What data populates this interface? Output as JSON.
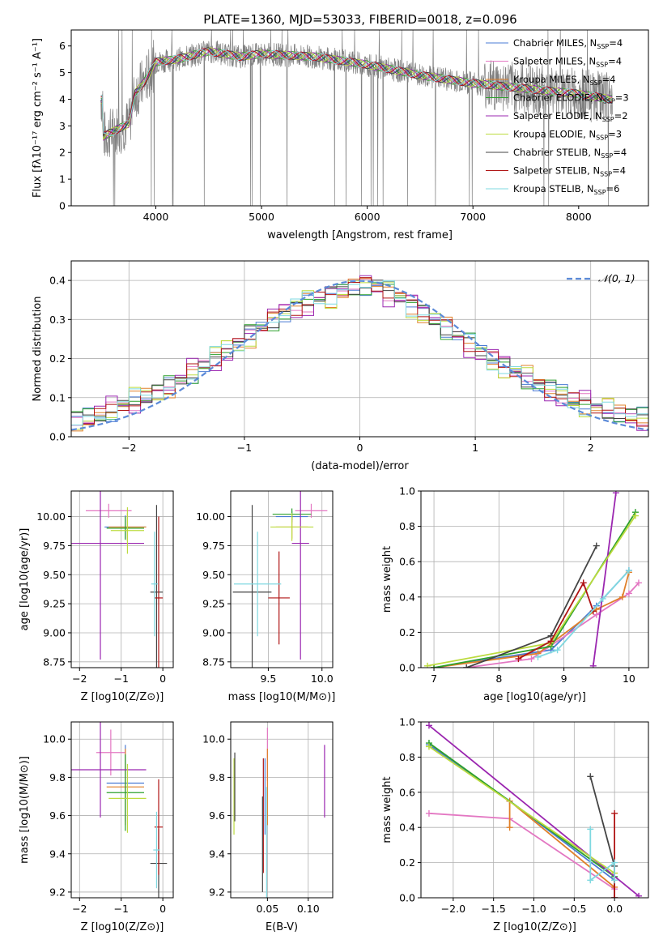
{
  "title": "PLATE=1360, MJD=53033, FIBERID=0018, z=0.096",
  "colors": {
    "chabrier_miles": "#4a7bd4",
    "salpeter_miles": "#e377c2",
    "kroupa_miles": "#e0802a",
    "chabrier_elodie": "#2ca02c",
    "salpeter_elodie": "#9b27b0",
    "kroupa_elodie": "#bcdb3e",
    "chabrier_stelib": "#444444",
    "salpeter_stelib": "#b01515",
    "kroupa_stelib": "#7fd8e0",
    "data": "#808080",
    "normal": "#5b8ad8"
  },
  "legend": [
    {
      "key": "chabrier_miles",
      "label": "Chabrier MILES, N",
      "sub": "SSP",
      "eq": "=4"
    },
    {
      "key": "salpeter_miles",
      "label": "Salpeter MILES, N",
      "sub": "SSP",
      "eq": "=4"
    },
    {
      "key": "kroupa_miles",
      "label": "Kroupa MILES, N",
      "sub": "SSP",
      "eq": "=4"
    },
    {
      "key": "chabrier_elodie",
      "label": "Chabrier ELODIE, N",
      "sub": "SSP",
      "eq": "=3"
    },
    {
      "key": "salpeter_elodie",
      "label": "Salpeter ELODIE, N",
      "sub": "SSP",
      "eq": "=2"
    },
    {
      "key": "kroupa_elodie",
      "label": "Kroupa ELODIE, N",
      "sub": "SSP",
      "eq": "=3"
    },
    {
      "key": "chabrier_stelib",
      "label": "Chabrier STELIB, N",
      "sub": "SSP",
      "eq": "=4"
    },
    {
      "key": "salpeter_stelib",
      "label": "Salpeter STELIB, N",
      "sub": "SSP",
      "eq": "=4"
    },
    {
      "key": "kroupa_stelib",
      "label": "Kroupa STELIB, N",
      "sub": "SSP",
      "eq": "=6"
    }
  ],
  "chart_data": [
    {
      "id": "spectrum",
      "type": "line",
      "xlabel": "wavelength [Angstrom, rest frame]",
      "ylabel": "Flux [fλ10⁻¹⁷ erg cm⁻² s⁻¹ A⁻¹]",
      "xlim": [
        3200,
        8660
      ],
      "ylim": [
        0,
        6.6
      ],
      "xticks": [
        4000,
        5000,
        6000,
        7000,
        8000
      ],
      "yticks": [
        0,
        1,
        2,
        3,
        4,
        5,
        6
      ],
      "continuum": [
        [
          3500,
          2.6
        ],
        [
          3700,
          3.0
        ],
        [
          3750,
          3.1
        ],
        [
          3800,
          4.2
        ],
        [
          3900,
          4.7
        ],
        [
          4000,
          5.4
        ],
        [
          4200,
          5.5
        ],
        [
          4500,
          5.8
        ],
        [
          4800,
          5.6
        ],
        [
          5000,
          5.7
        ],
        [
          5500,
          5.6
        ],
        [
          6000,
          5.3
        ],
        [
          6500,
          4.9
        ],
        [
          7000,
          4.6
        ],
        [
          7500,
          4.4
        ],
        [
          8000,
          4.2
        ],
        [
          8300,
          4.0
        ]
      ]
    },
    {
      "id": "residual_hist",
      "type": "step",
      "xlabel": "(data-model)/error",
      "ylabel": "Normed distribution",
      "xlim": [
        -2.5,
        2.5
      ],
      "ylim": [
        0,
        0.45
      ],
      "xticks": [
        -2,
        -1,
        0,
        1,
        2
      ],
      "yticks": [
        0.0,
        0.1,
        0.2,
        0.3,
        0.4
      ],
      "normal_label": "𝒩(0, 1)",
      "base_profile": [
        0.04,
        0.048,
        0.058,
        0.066,
        0.08,
        0.09,
        0.102,
        0.118,
        0.128,
        0.148,
        0.165,
        0.18,
        0.2,
        0.22,
        0.24,
        0.262,
        0.28,
        0.3,
        0.318,
        0.33,
        0.345,
        0.355,
        0.365,
        0.375,
        0.385,
        0.39,
        0.385,
        0.372,
        0.358,
        0.34,
        0.32,
        0.3,
        0.28,
        0.258,
        0.24,
        0.218,
        0.2,
        0.182,
        0.165,
        0.15,
        0.135,
        0.12,
        0.108,
        0.095,
        0.085,
        0.075,
        0.066,
        0.058,
        0.052,
        0.046
      ],
      "series_offsets": [
        0.012,
        -0.008,
        0.018,
        -0.014,
        0.022,
        -0.02,
        0.005,
        -0.004,
        0.015
      ]
    },
    {
      "id": "age_vs_Z",
      "type": "errorbar",
      "xlabel": "Z [log10(Z/Z⊙)]",
      "ylabel": "age  [log10(age/yr)]",
      "xlim": [
        -2.2,
        0.25
      ],
      "ylim": [
        8.7,
        10.22
      ],
      "xticks": [
        -2,
        -1,
        0
      ],
      "yticks": [
        8.75,
        9.0,
        9.25,
        9.5,
        9.75,
        10.0
      ],
      "points": [
        {
          "key": "chabrier_miles",
          "x": -0.9,
          "xe": 0.5,
          "y": 9.91,
          "ye": 0.1
        },
        {
          "key": "salpeter_miles",
          "x": -1.3,
          "xe": 0.55,
          "y": 10.05,
          "ye": 0.06
        },
        {
          "key": "kroupa_miles",
          "x": -0.85,
          "xe": 0.45,
          "y": 9.91,
          "ye": 0.12
        },
        {
          "key": "chabrier_elodie",
          "x": -0.9,
          "xe": 0.45,
          "y": 9.9,
          "ye": 0.1
        },
        {
          "key": "salpeter_elodie",
          "x": -1.5,
          "xe": 1.05,
          "y": 9.77,
          "ye": 1.0
        },
        {
          "key": "kroupa_elodie",
          "x": -0.85,
          "xe": 0.4,
          "y": 9.88,
          "ye": 0.2
        },
        {
          "key": "chabrier_stelib",
          "x": -0.15,
          "xe": 0.15,
          "y": 9.35,
          "ye": 0.75
        },
        {
          "key": "salpeter_stelib",
          "x": -0.1,
          "xe": 0.1,
          "y": 9.3,
          "ye": 0.7
        },
        {
          "key": "kroupa_stelib",
          "x": -0.2,
          "xe": 0.08,
          "y": 9.42,
          "ye": 0.45
        }
      ]
    },
    {
      "id": "age_vs_mass",
      "type": "errorbar",
      "xlabel": "mass [log10(M/M⊙)]",
      "ylabel": "",
      "xlim": [
        9.15,
        10.1
      ],
      "ylim": [
        8.7,
        10.22
      ],
      "xticks": [
        9.5,
        10.0
      ],
      "yticks": [
        8.75,
        9.0,
        9.25,
        9.5,
        9.75,
        10.0
      ],
      "points": [
        {
          "key": "chabrier_miles",
          "x": 9.72,
          "xe": 0.15,
          "y": 10.0,
          "ye": 0.05
        },
        {
          "key": "salpeter_miles",
          "x": 9.9,
          "xe": 0.15,
          "y": 10.05,
          "ye": 0.06
        },
        {
          "key": "kroupa_miles",
          "x": 9.72,
          "xe": 0.15,
          "y": 9.91,
          "ye": 0.1
        },
        {
          "key": "chabrier_elodie",
          "x": 9.72,
          "xe": 0.18,
          "y": 10.02,
          "ye": 0.05
        },
        {
          "key": "salpeter_elodie",
          "x": 9.8,
          "xe": 0.08,
          "y": 9.77,
          "ye": 1.0
        },
        {
          "key": "kroupa_elodie",
          "x": 9.72,
          "xe": 0.2,
          "y": 9.91,
          "ye": 0.12
        },
        {
          "key": "chabrier_stelib",
          "x": 9.35,
          "xe": 0.18,
          "y": 9.35,
          "ye": 0.75
        },
        {
          "key": "salpeter_stelib",
          "x": 9.6,
          "xe": 0.1,
          "y": 9.3,
          "ye": 0.4
        },
        {
          "key": "kroupa_stelib",
          "x": 9.4,
          "xe": 0.22,
          "y": 9.42,
          "ye": 0.45
        }
      ]
    },
    {
      "id": "massweight_vs_age",
      "type": "line",
      "xlabel": "age  [log10(age/yr)]",
      "ylabel": "mass weight",
      "xlim": [
        6.8,
        10.3
      ],
      "ylim": [
        0,
        1.0
      ],
      "xticks": [
        7,
        8,
        9,
        10
      ],
      "yticks": [
        0.0,
        0.2,
        0.4,
        0.6,
        0.8,
        1.0
      ],
      "series": [
        {
          "key": "chabrier_miles",
          "x": [
            7.0,
            8.8,
            9.5,
            10.0
          ],
          "y": [
            0.0,
            0.1,
            0.35,
            0.55
          ]
        },
        {
          "key": "salpeter_miles",
          "x": [
            7.5,
            8.5,
            9.5,
            10.0,
            10.15
          ],
          "y": [
            0.0,
            0.05,
            0.3,
            0.42,
            0.48
          ]
        },
        {
          "key": "kroupa_miles",
          "x": [
            7.0,
            8.6,
            9.5,
            9.9,
            10.0
          ],
          "y": [
            0.0,
            0.08,
            0.33,
            0.4,
            0.54
          ]
        },
        {
          "key": "chabrier_elodie",
          "x": [
            7.0,
            8.8,
            10.1
          ],
          "y": [
            0.0,
            0.12,
            0.88
          ]
        },
        {
          "key": "salpeter_elodie",
          "x": [
            9.45,
            9.8
          ],
          "y": [
            0.01,
            0.99
          ]
        },
        {
          "key": "kroupa_elodie",
          "x": [
            6.9,
            8.8,
            10.1
          ],
          "y": [
            0.01,
            0.14,
            0.86
          ]
        },
        {
          "key": "chabrier_stelib",
          "x": [
            7.5,
            8.8,
            9.5
          ],
          "y": [
            0.0,
            0.18,
            0.69
          ]
        },
        {
          "key": "salpeter_stelib",
          "x": [
            8.3,
            8.8,
            9.3,
            9.45
          ],
          "y": [
            0.05,
            0.15,
            0.48,
            0.32
          ]
        },
        {
          "key": "kroupa_stelib",
          "x": [
            8.6,
            8.9,
            9.6,
            10.0
          ],
          "y": [
            0.06,
            0.1,
            0.39,
            0.55
          ]
        }
      ]
    },
    {
      "id": "mass_vs_Z",
      "type": "errorbar",
      "xlabel": "Z [log10(Z/Z⊙)]",
      "ylabel": "mass [log10(M/M⊙)]",
      "xlim": [
        -2.2,
        0.25
      ],
      "ylim": [
        9.17,
        10.09
      ],
      "xticks": [
        -2,
        -1,
        0
      ],
      "yticks": [
        9.2,
        9.4,
        9.6,
        9.8,
        10.0
      ],
      "points": [
        {
          "key": "chabrier_miles",
          "x": -0.9,
          "xe": 0.45,
          "y": 9.77,
          "ye": 0.2
        },
        {
          "key": "salpeter_miles",
          "x": -1.25,
          "xe": 0.35,
          "y": 9.93,
          "ye": 0.12
        },
        {
          "key": "kroupa_miles",
          "x": -0.9,
          "xe": 0.45,
          "y": 9.75,
          "ye": 0.2
        },
        {
          "key": "chabrier_elodie",
          "x": -0.9,
          "xe": 0.45,
          "y": 9.72,
          "ye": 0.2
        },
        {
          "key": "salpeter_elodie",
          "x": -1.5,
          "xe": 1.1,
          "y": 9.84,
          "ye": 0.25
        },
        {
          "key": "kroupa_elodie",
          "x": -0.85,
          "xe": 0.45,
          "y": 9.69,
          "ye": 0.18
        },
        {
          "key": "chabrier_stelib",
          "x": -0.1,
          "xe": 0.2,
          "y": 9.35,
          "ye": 0.18
        },
        {
          "key": "salpeter_stelib",
          "x": -0.1,
          "xe": 0.1,
          "y": 9.54,
          "ye": 0.25
        },
        {
          "key": "kroupa_stelib",
          "x": -0.15,
          "xe": 0.08,
          "y": 9.42,
          "ye": 0.2
        }
      ]
    },
    {
      "id": "mass_vs_ebv",
      "type": "errorbar",
      "xlabel": "E(B-V)",
      "ylabel": "",
      "xlim": [
        0.005,
        0.13
      ],
      "ylim": [
        9.17,
        10.09
      ],
      "xticks": [
        0.05,
        0.1
      ],
      "yticks": [
        9.2,
        9.4,
        9.6,
        9.8,
        10.0
      ],
      "points": [
        {
          "key": "kroupa_elodie",
          "x": 0.009,
          "xe": 0,
          "y": 9.7,
          "ye": 0.2
        },
        {
          "key": "chabrier_stelib",
          "x": 0.01,
          "xe": 0,
          "y": 9.75,
          "ye": 0.18
        },
        {
          "key": "chabrier_miles",
          "x": 0.047,
          "xe": 0,
          "y": 9.7,
          "ye": 0.2
        },
        {
          "key": "salpeter_stelib",
          "x": 0.045,
          "xe": 0,
          "y": 9.6,
          "ye": 0.3
        },
        {
          "key": "chabrier_stelib",
          "x": 0.044,
          "xe": 0,
          "y": 9.45,
          "ye": 0.25
        },
        {
          "key": "salpeter_miles",
          "x": 0.05,
          "xe": 0,
          "y": 9.92,
          "ye": 0.14
        },
        {
          "key": "kroupa_miles",
          "x": 0.05,
          "xe": 0,
          "y": 9.75,
          "ye": 0.2
        },
        {
          "key": "kroupa_stelib",
          "x": 0.049,
          "xe": 0,
          "y": 9.45,
          "ye": 0.3
        },
        {
          "key": "salpeter_elodie",
          "x": 0.12,
          "xe": 0,
          "y": 9.78,
          "ye": 0.19
        }
      ]
    },
    {
      "id": "massweight_vs_Z",
      "type": "line",
      "xlabel": "Z [log10(Z/Z⊙)]",
      "ylabel": "mass weight",
      "xlim": [
        -2.4,
        0.42
      ],
      "ylim": [
        0,
        1.0
      ],
      "xticks": [
        -2.0,
        -1.5,
        -1.0,
        -0.5,
        0.0
      ],
      "yticks": [
        0.0,
        0.2,
        0.4,
        0.6,
        0.8,
        1.0
      ],
      "series": [
        {
          "key": "chabrier_miles",
          "x": [
            -2.3,
            -1.3,
            0.0
          ],
          "y": [
            0.87,
            0.55,
            0.1
          ]
        },
        {
          "key": "salpeter_miles",
          "x": [
            -2.3,
            -1.3,
            0.0
          ],
          "y": [
            0.48,
            0.45,
            0.05
          ]
        },
        {
          "key": "kroupa_miles",
          "x": [
            -1.3,
            -1.3,
            0.0
          ],
          "y": [
            0.4,
            0.55,
            0.06
          ]
        },
        {
          "key": "chabrier_elodie",
          "x": [
            -2.3,
            0.0
          ],
          "y": [
            0.88,
            0.12
          ]
        },
        {
          "key": "salpeter_elodie",
          "x": [
            -2.3,
            0.3
          ],
          "y": [
            0.98,
            0.01
          ]
        },
        {
          "key": "kroupa_elodie",
          "x": [
            -2.3,
            0.0
          ],
          "y": [
            0.86,
            0.14
          ]
        },
        {
          "key": "chabrier_stelib",
          "x": [
            -0.3,
            0.0,
            0.0
          ],
          "y": [
            0.69,
            0.18,
            0.0
          ]
        },
        {
          "key": "salpeter_stelib",
          "x": [
            0.0,
            0.0
          ],
          "y": [
            0.48,
            0.0
          ]
        },
        {
          "key": "kroupa_stelib",
          "x": [
            -0.3,
            -0.3,
            0.0,
            0.0
          ],
          "y": [
            0.39,
            0.1,
            0.2,
            0.1
          ]
        }
      ]
    }
  ]
}
